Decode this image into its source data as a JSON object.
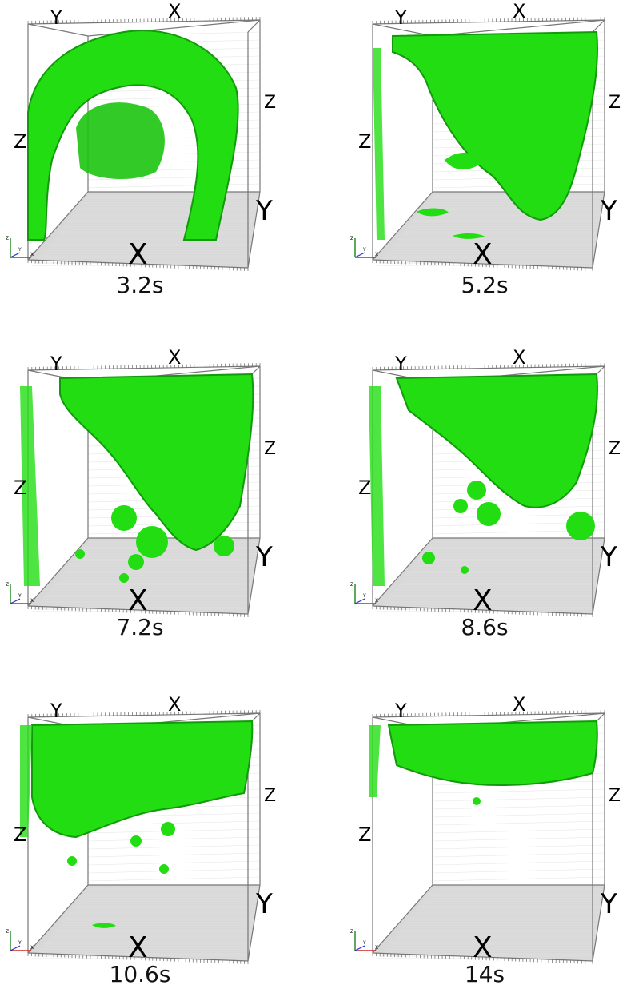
{
  "colors": {
    "isosurface": "#22dd11",
    "isosurface_dark": "#119a0a",
    "floor": "#b8b8b8",
    "grid": "#999999"
  },
  "axis_labels": {
    "x_top": "X",
    "y_top": "Y",
    "z_right": "Z",
    "z_left": "Z",
    "y_right": "Y",
    "x_bottom": "X"
  },
  "triad_labels": {
    "z": "Z",
    "y": "Y",
    "x": "X"
  },
  "panels": [
    {
      "caption": "3.2s"
    },
    {
      "caption": "5.2s"
    },
    {
      "caption": "7.2s"
    },
    {
      "caption": "8.6s"
    },
    {
      "caption": "10.6s"
    },
    {
      "caption": "14s"
    }
  ]
}
